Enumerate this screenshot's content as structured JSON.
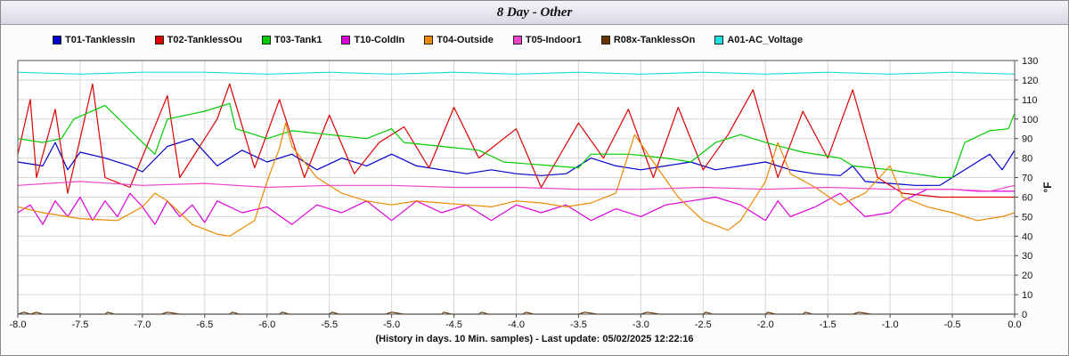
{
  "window": {
    "title": "8 Day - Other"
  },
  "footer": {
    "caption": "(History in days. 10 Min. samples) - Last update: 05/02/2025 12:22:16"
  },
  "axis": {
    "y_unit": "°F"
  },
  "chart_data": {
    "type": "line",
    "title": "8 Day - Other",
    "xlabel": "(History in days. 10 Min. samples) - Last update: 05/02/2025 12:22:16",
    "ylabel": "°F",
    "xlim": [
      -8.0,
      0.0
    ],
    "ylim": [
      0,
      130
    ],
    "x_ticks": [
      "-8.0",
      "-7.5",
      "-7.0",
      "-6.5",
      "-6.0",
      "-5.5",
      "-5.0",
      "-4.5",
      "-4.0",
      "-3.5",
      "-3.0",
      "-2.5",
      "-2.0",
      "-1.5",
      "-1.0",
      "-0.5",
      "0.0"
    ],
    "y_ticks": [
      "0",
      "10",
      "20",
      "30",
      "40",
      "50",
      "60",
      "70",
      "80",
      "90",
      "100",
      "110",
      "120",
      "130"
    ],
    "grid": true,
    "legend_position": "top",
    "series": [
      {
        "name": "T01-TanklessIn",
        "color": "#0000cc",
        "points": [
          [
            -8.0,
            78
          ],
          [
            -7.8,
            76
          ],
          [
            -7.7,
            88
          ],
          [
            -7.6,
            74
          ],
          [
            -7.5,
            83
          ],
          [
            -7.3,
            80
          ],
          [
            -7.1,
            76
          ],
          [
            -7.0,
            73
          ],
          [
            -6.8,
            86
          ],
          [
            -6.6,
            90
          ],
          [
            -6.4,
            76
          ],
          [
            -6.2,
            84
          ],
          [
            -6.0,
            78
          ],
          [
            -5.8,
            82
          ],
          [
            -5.6,
            74
          ],
          [
            -5.4,
            80
          ],
          [
            -5.2,
            76
          ],
          [
            -5.0,
            82
          ],
          [
            -4.8,
            76
          ],
          [
            -4.6,
            74
          ],
          [
            -4.4,
            72
          ],
          [
            -4.2,
            74
          ],
          [
            -4.0,
            72
          ],
          [
            -3.8,
            71
          ],
          [
            -3.6,
            72
          ],
          [
            -3.4,
            80
          ],
          [
            -3.2,
            76
          ],
          [
            -3.0,
            74
          ],
          [
            -2.8,
            76
          ],
          [
            -2.6,
            78
          ],
          [
            -2.4,
            74
          ],
          [
            -2.2,
            76
          ],
          [
            -2.0,
            78
          ],
          [
            -1.8,
            74
          ],
          [
            -1.6,
            72
          ],
          [
            -1.4,
            71
          ],
          [
            -1.3,
            76
          ],
          [
            -1.2,
            68
          ],
          [
            -1.0,
            67
          ],
          [
            -0.8,
            66
          ],
          [
            -0.6,
            66
          ],
          [
            -0.4,
            74
          ],
          [
            -0.2,
            82
          ],
          [
            -0.1,
            74
          ],
          [
            0.0,
            84
          ]
        ]
      },
      {
        "name": "T02-TanklessOu",
        "color": "#dd0000",
        "points": [
          [
            -8.0,
            82
          ],
          [
            -7.9,
            110
          ],
          [
            -7.85,
            70
          ],
          [
            -7.7,
            105
          ],
          [
            -7.6,
            62
          ],
          [
            -7.4,
            118
          ],
          [
            -7.3,
            70
          ],
          [
            -7.1,
            65
          ],
          [
            -6.8,
            112
          ],
          [
            -6.7,
            70
          ],
          [
            -6.4,
            100
          ],
          [
            -6.3,
            118
          ],
          [
            -6.1,
            75
          ],
          [
            -5.9,
            110
          ],
          [
            -5.7,
            70
          ],
          [
            -5.5,
            102
          ],
          [
            -5.3,
            72
          ],
          [
            -5.1,
            88
          ],
          [
            -4.9,
            96
          ],
          [
            -4.7,
            75
          ],
          [
            -4.5,
            106
          ],
          [
            -4.3,
            80
          ],
          [
            -4.0,
            95
          ],
          [
            -3.8,
            65
          ],
          [
            -3.5,
            98
          ],
          [
            -3.3,
            80
          ],
          [
            -3.1,
            105
          ],
          [
            -2.9,
            70
          ],
          [
            -2.7,
            106
          ],
          [
            -2.5,
            74
          ],
          [
            -2.3,
            92
          ],
          [
            -2.1,
            115
          ],
          [
            -1.9,
            70
          ],
          [
            -1.7,
            104
          ],
          [
            -1.5,
            80
          ],
          [
            -1.3,
            115
          ],
          [
            -1.1,
            70
          ],
          [
            -0.9,
            62
          ],
          [
            -0.6,
            60
          ],
          [
            -0.3,
            60
          ],
          [
            0.0,
            60
          ]
        ]
      },
      {
        "name": "T03-Tank1",
        "color": "#00cc00",
        "points": [
          [
            -8.0,
            90
          ],
          [
            -7.8,
            88
          ],
          [
            -7.65,
            90
          ],
          [
            -7.55,
            100
          ],
          [
            -7.3,
            107
          ],
          [
            -7.0,
            88
          ],
          [
            -6.9,
            82
          ],
          [
            -6.8,
            100
          ],
          [
            -6.5,
            104
          ],
          [
            -6.3,
            108
          ],
          [
            -6.25,
            95
          ],
          [
            -6.0,
            90
          ],
          [
            -5.8,
            94
          ],
          [
            -5.5,
            92
          ],
          [
            -5.2,
            90
          ],
          [
            -5.0,
            95
          ],
          [
            -4.9,
            88
          ],
          [
            -4.6,
            86
          ],
          [
            -4.3,
            84
          ],
          [
            -4.1,
            78
          ],
          [
            -3.9,
            77
          ],
          [
            -3.7,
            76
          ],
          [
            -3.5,
            75
          ],
          [
            -3.4,
            82
          ],
          [
            -3.1,
            82
          ],
          [
            -2.8,
            80
          ],
          [
            -2.6,
            78
          ],
          [
            -2.4,
            88
          ],
          [
            -2.2,
            92
          ],
          [
            -2.0,
            88
          ],
          [
            -1.7,
            83
          ],
          [
            -1.4,
            80
          ],
          [
            -1.3,
            76
          ],
          [
            -1.0,
            74
          ],
          [
            -0.8,
            72
          ],
          [
            -0.6,
            70
          ],
          [
            -0.5,
            70
          ],
          [
            -0.4,
            88
          ],
          [
            -0.2,
            94
          ],
          [
            -0.05,
            95
          ],
          [
            0.0,
            103
          ]
        ]
      },
      {
        "name": "T10-ColdIn",
        "color": "#dd00dd",
        "points": [
          [
            -8.0,
            52
          ],
          [
            -7.9,
            56
          ],
          [
            -7.8,
            46
          ],
          [
            -7.7,
            58
          ],
          [
            -7.6,
            50
          ],
          [
            -7.5,
            60
          ],
          [
            -7.4,
            48
          ],
          [
            -7.3,
            58
          ],
          [
            -7.2,
            50
          ],
          [
            -7.1,
            62
          ],
          [
            -7.0,
            55
          ],
          [
            -6.9,
            46
          ],
          [
            -6.8,
            58
          ],
          [
            -6.7,
            50
          ],
          [
            -6.6,
            56
          ],
          [
            -6.5,
            47
          ],
          [
            -6.4,
            58
          ],
          [
            -6.2,
            52
          ],
          [
            -6.0,
            55
          ],
          [
            -5.8,
            46
          ],
          [
            -5.6,
            56
          ],
          [
            -5.4,
            52
          ],
          [
            -5.2,
            58
          ],
          [
            -5.0,
            48
          ],
          [
            -4.8,
            58
          ],
          [
            -4.6,
            52
          ],
          [
            -4.4,
            56
          ],
          [
            -4.2,
            48
          ],
          [
            -4.0,
            56
          ],
          [
            -3.8,
            52
          ],
          [
            -3.6,
            56
          ],
          [
            -3.4,
            48
          ],
          [
            -3.2,
            54
          ],
          [
            -3.0,
            50
          ],
          [
            -2.8,
            56
          ],
          [
            -2.6,
            58
          ],
          [
            -2.4,
            60
          ],
          [
            -2.2,
            56
          ],
          [
            -2.0,
            48
          ],
          [
            -1.9,
            58
          ],
          [
            -1.8,
            50
          ],
          [
            -1.6,
            55
          ],
          [
            -1.4,
            62
          ],
          [
            -1.2,
            50
          ],
          [
            -1.0,
            52
          ],
          [
            -0.9,
            58
          ],
          [
            -0.7,
            64
          ],
          [
            -0.5,
            64
          ],
          [
            -0.3,
            63
          ],
          [
            0.0,
            63
          ]
        ]
      },
      {
        "name": "T04-Outside",
        "color": "#ee8800",
        "points": [
          [
            -8.0,
            55
          ],
          [
            -7.8,
            52
          ],
          [
            -7.5,
            49
          ],
          [
            -7.2,
            48
          ],
          [
            -7.0,
            55
          ],
          [
            -6.9,
            62
          ],
          [
            -6.8,
            58
          ],
          [
            -6.6,
            46
          ],
          [
            -6.4,
            41
          ],
          [
            -6.3,
            40
          ],
          [
            -6.1,
            48
          ],
          [
            -6.0,
            68
          ],
          [
            -5.9,
            85
          ],
          [
            -5.85,
            98
          ],
          [
            -5.8,
            86
          ],
          [
            -5.6,
            70
          ],
          [
            -5.4,
            62
          ],
          [
            -5.2,
            58
          ],
          [
            -5.0,
            56
          ],
          [
            -4.8,
            58
          ],
          [
            -4.6,
            57
          ],
          [
            -4.4,
            56
          ],
          [
            -4.2,
            55
          ],
          [
            -4.0,
            58
          ],
          [
            -3.8,
            57
          ],
          [
            -3.6,
            55
          ],
          [
            -3.4,
            57
          ],
          [
            -3.2,
            62
          ],
          [
            -3.05,
            92
          ],
          [
            -2.9,
            78
          ],
          [
            -2.7,
            60
          ],
          [
            -2.5,
            48
          ],
          [
            -2.3,
            43
          ],
          [
            -2.2,
            48
          ],
          [
            -2.0,
            68
          ],
          [
            -1.9,
            88
          ],
          [
            -1.8,
            72
          ],
          [
            -1.6,
            65
          ],
          [
            -1.4,
            56
          ],
          [
            -1.2,
            62
          ],
          [
            -1.0,
            76
          ],
          [
            -0.9,
            60
          ],
          [
            -0.7,
            55
          ],
          [
            -0.5,
            52
          ],
          [
            -0.3,
            48
          ],
          [
            -0.1,
            50
          ],
          [
            0.0,
            52
          ]
        ]
      },
      {
        "name": "T05-Indoor1",
        "color": "#ee44cc",
        "points": [
          [
            -8.0,
            66
          ],
          [
            -7.5,
            68
          ],
          [
            -7.0,
            66
          ],
          [
            -6.5,
            67
          ],
          [
            -6.0,
            65
          ],
          [
            -5.5,
            66
          ],
          [
            -5.0,
            66
          ],
          [
            -4.5,
            65
          ],
          [
            -4.0,
            65
          ],
          [
            -3.5,
            64
          ],
          [
            -3.0,
            64
          ],
          [
            -2.5,
            65
          ],
          [
            -2.0,
            64
          ],
          [
            -1.5,
            65
          ],
          [
            -1.0,
            64
          ],
          [
            -0.5,
            64
          ],
          [
            -0.2,
            63
          ],
          [
            0.0,
            66
          ]
        ]
      },
      {
        "name": "R08x-TanklessOn",
        "color": "#663300",
        "points": [
          [
            -8.0,
            0
          ],
          [
            -7.95,
            1
          ],
          [
            -7.9,
            0
          ],
          [
            -7.85,
            1
          ],
          [
            -7.8,
            0
          ],
          [
            -7.3,
            0
          ],
          [
            -7.28,
            1
          ],
          [
            -7.22,
            0
          ],
          [
            -6.85,
            0
          ],
          [
            -6.8,
            1
          ],
          [
            -6.7,
            0
          ],
          [
            -6.3,
            0
          ],
          [
            -6.28,
            1
          ],
          [
            -6.22,
            0
          ],
          [
            -5.9,
            0
          ],
          [
            -5.88,
            1
          ],
          [
            -5.82,
            0
          ],
          [
            -5.5,
            0
          ],
          [
            -5.48,
            1
          ],
          [
            -5.42,
            0
          ],
          [
            -5.05,
            0
          ],
          [
            -5.0,
            1
          ],
          [
            -4.9,
            0
          ],
          [
            -4.6,
            0
          ],
          [
            -4.58,
            1
          ],
          [
            -4.52,
            0
          ],
          [
            -4.3,
            0
          ],
          [
            -4.28,
            1
          ],
          [
            -4.22,
            0
          ],
          [
            -3.95,
            0
          ],
          [
            -3.92,
            1
          ],
          [
            -3.86,
            0
          ],
          [
            -3.5,
            0
          ],
          [
            -3.45,
            1
          ],
          [
            -3.35,
            0
          ],
          [
            -3.0,
            0
          ],
          [
            -2.95,
            1
          ],
          [
            -2.85,
            0
          ],
          [
            -2.5,
            0
          ],
          [
            -2.48,
            1
          ],
          [
            -2.42,
            0
          ],
          [
            -2.0,
            0
          ],
          [
            -1.98,
            1
          ],
          [
            -1.92,
            0
          ],
          [
            -1.7,
            0
          ],
          [
            -1.68,
            1
          ],
          [
            -1.62,
            0
          ],
          [
            -1.3,
            0
          ],
          [
            -1.25,
            1
          ],
          [
            -1.15,
            0
          ],
          [
            0.0,
            0
          ]
        ]
      },
      {
        "name": "A01-AC_Voltage",
        "color": "#22dddd",
        "points": [
          [
            -8.0,
            124
          ],
          [
            -7.5,
            123
          ],
          [
            -7.0,
            124
          ],
          [
            -6.5,
            124
          ],
          [
            -6.0,
            123
          ],
          [
            -5.5,
            124
          ],
          [
            -5.0,
            123
          ],
          [
            -4.5,
            124
          ],
          [
            -4.0,
            123
          ],
          [
            -3.5,
            124
          ],
          [
            -3.0,
            123
          ],
          [
            -2.5,
            124
          ],
          [
            -2.0,
            123
          ],
          [
            -1.5,
            124
          ],
          [
            -1.0,
            123
          ],
          [
            -0.5,
            124
          ],
          [
            0.0,
            123
          ]
        ]
      }
    ]
  }
}
